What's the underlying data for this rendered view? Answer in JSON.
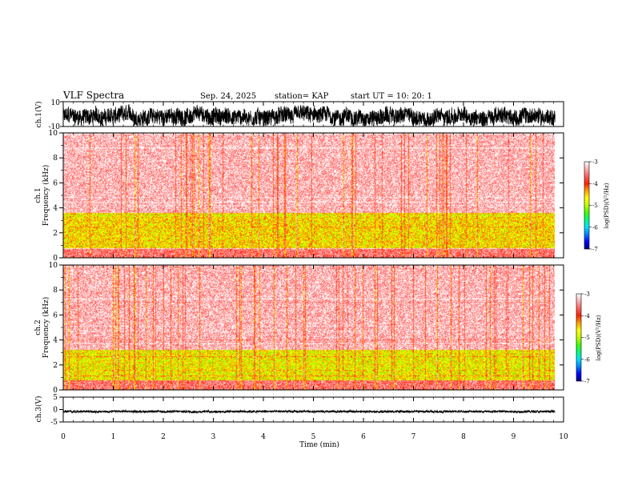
{
  "header": {
    "title": "VLF Spectra",
    "date": "Sep. 24, 2025",
    "station": "station= KAP",
    "start": "start  UT  =   10: 20: 1"
  },
  "chart_data": [
    {
      "type": "line",
      "id": "ch1-waveform",
      "ylabel": "ch.1(V)",
      "ylim": [
        -10,
        10
      ],
      "yticks": [
        10,
        -10
      ],
      "xlim": [
        0,
        10
      ],
      "x_extent": [
        0,
        9.83
      ],
      "approx_range_v": [
        -9,
        6
      ],
      "approx_mean_v": -2
    },
    {
      "type": "heatmap",
      "id": "ch1-spectrogram",
      "ylabel": "ch.1 Frequency  (kHz)",
      "ylim": [
        0,
        10
      ],
      "yticks": [
        0,
        2,
        4,
        6,
        8,
        10
      ],
      "xlim": [
        0,
        10
      ],
      "x_extent": [
        0,
        9.83
      ],
      "colorbar": {
        "label": "log(PSD)(V²/Hz)",
        "range": [
          -7,
          -3
        ],
        "ticks": [
          -3,
          -4,
          -5,
          -6,
          -7
        ]
      },
      "band_description": [
        {
          "f_range_khz": [
            3.6,
            10
          ],
          "approx_log_psd": -3.3
        },
        {
          "f_range_khz": [
            0.8,
            3.6
          ],
          "approx_log_psd": -4.6
        },
        {
          "f_range_khz": [
            0,
            0.8
          ],
          "approx_log_psd": -3.6
        }
      ]
    },
    {
      "type": "heatmap",
      "id": "ch2-spectrogram",
      "ylabel": "ch.2 Frequency  (kHz)",
      "ylim": [
        0,
        10
      ],
      "yticks": [
        0,
        2,
        4,
        6,
        8,
        10
      ],
      "xlim": [
        0,
        10
      ],
      "x_extent": [
        0,
        9.83
      ],
      "colorbar": {
        "label": "log(PSD)(V²/Hz)",
        "range": [
          -7,
          -3
        ],
        "ticks": [
          -3,
          -4,
          -5,
          -6,
          -7
        ]
      },
      "band_description": [
        {
          "f_range_khz": [
            3.2,
            10
          ],
          "approx_log_psd": -3.3
        },
        {
          "f_range_khz": [
            0.8,
            3.2
          ],
          "approx_log_psd": -4.7
        },
        {
          "f_range_khz": [
            0,
            0.8
          ],
          "approx_log_psd": -3.6
        }
      ]
    },
    {
      "type": "line",
      "id": "ch3-waveform",
      "ylabel": "ch.3(V)",
      "ylim": [
        -5,
        5
      ],
      "yticks": [
        5,
        0,
        -5
      ],
      "xlim": [
        0,
        10
      ],
      "x_extent": [
        0,
        9.83
      ],
      "approx_range_v": [
        -1.2,
        -0.4
      ],
      "xlabel": "Time  (min)",
      "xticks": [
        0,
        1,
        2,
        3,
        4,
        5,
        6,
        7,
        8,
        9,
        10
      ]
    }
  ],
  "colors": {
    "colormap": [
      "#00007f",
      "#0000ff",
      "#0080ff",
      "#00e0ff",
      "#00ff80",
      "#40ff00",
      "#c0ff00",
      "#ffff00",
      "#ffa000",
      "#ff2000",
      "#ff6060",
      "#ffb0b0",
      "#ffffff"
    ],
    "trace": "#000000"
  }
}
